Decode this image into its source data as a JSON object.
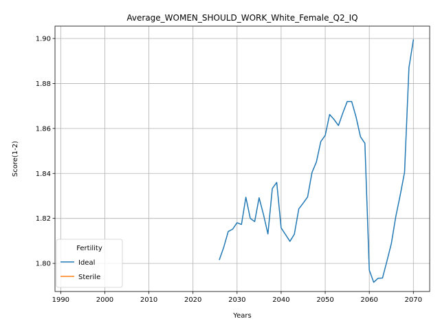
{
  "chart_data": {
    "type": "line",
    "title": "Average_WOMEN_SHOULD_WORK_White_Female_Q2_IQ",
    "xlabel": "Years",
    "ylabel": "Score(1-2)",
    "xlim": [
      1988.7,
      2073.7
    ],
    "ylim": [
      1.7875,
      1.9055
    ],
    "xticks": [
      1990,
      2000,
      2010,
      2020,
      2030,
      2040,
      2050,
      2060,
      2070
    ],
    "yticks": [
      1.8,
      1.82,
      1.84,
      1.86,
      1.88,
      1.9
    ],
    "ytick_labels": [
      "1.80",
      "1.82",
      "1.84",
      "1.86",
      "1.88",
      "1.90"
    ],
    "grid": true,
    "legend": {
      "title": "Fertility",
      "placement": "lower-left",
      "entries": [
        "Ideal",
        "Sterile"
      ]
    },
    "series": [
      {
        "name": "Ideal",
        "color": "#1f77b4",
        "x": [
          2026,
          2027,
          2028,
          2029,
          2030,
          2031,
          2032,
          2033,
          2034,
          2035,
          2036,
          2037,
          2038,
          2039,
          2040,
          2041,
          2042,
          2043,
          2044,
          2045,
          2046,
          2047,
          2048,
          2049,
          2050,
          2051,
          2052,
          2053,
          2054,
          2055,
          2056,
          2057,
          2058,
          2059,
          2060,
          2061,
          2062,
          2063,
          2064,
          2065,
          2066,
          2067,
          2068,
          2069,
          2070
        ],
        "y": [
          1.8017,
          1.8073,
          1.8142,
          1.8152,
          1.8181,
          1.8173,
          1.8294,
          1.82,
          1.8186,
          1.8292,
          1.8217,
          1.8131,
          1.8333,
          1.836,
          1.8158,
          1.8128,
          1.8098,
          1.813,
          1.8242,
          1.8268,
          1.8295,
          1.8404,
          1.8451,
          1.8542,
          1.8569,
          1.8662,
          1.864,
          1.8613,
          1.8669,
          1.872,
          1.872,
          1.8651,
          1.8563,
          1.8534,
          1.797,
          1.7916,
          1.7934,
          1.7935,
          1.801,
          1.8088,
          1.8207,
          1.8302,
          1.8405,
          1.8871,
          1.8994
        ]
      },
      {
        "name": "Sterile",
        "color": "#ff7f0e",
        "x": [],
        "y": []
      }
    ]
  }
}
